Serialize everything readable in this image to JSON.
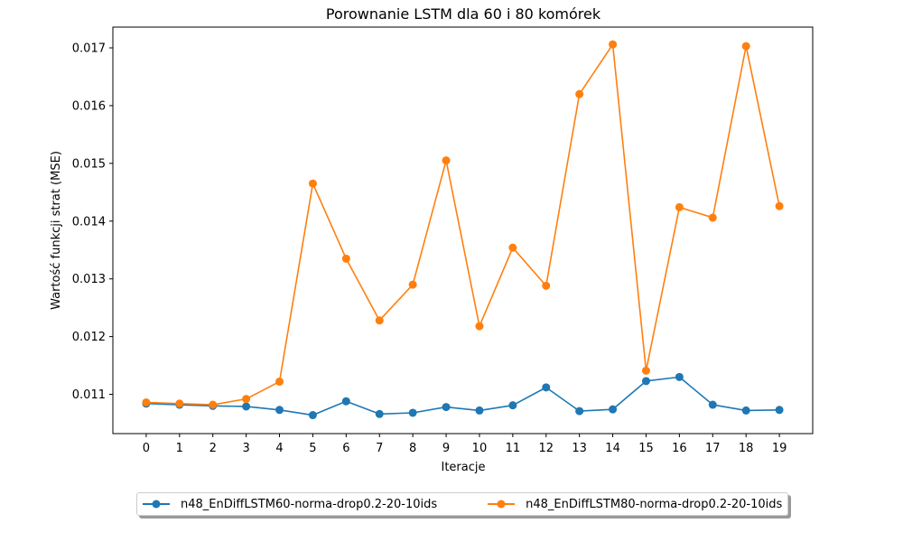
{
  "chart_data": {
    "type": "line",
    "title": "Porownanie LSTM dla 60 i 80 komórek",
    "xlabel": "Iteracje",
    "ylabel": "Wartość funkcji strat (MSE)",
    "x": [
      0,
      1,
      2,
      3,
      4,
      5,
      6,
      7,
      8,
      9,
      10,
      11,
      12,
      13,
      14,
      15,
      16,
      17,
      18,
      19
    ],
    "xlim": [
      -1.0,
      20.0
    ],
    "ylim": [
      0.01032,
      0.01736
    ],
    "yticks": [
      "0.011",
      "0.012",
      "0.013",
      "0.014",
      "0.015",
      "0.016",
      "0.017"
    ],
    "ytick_values": [
      0.011,
      0.012,
      0.013,
      0.014,
      0.015,
      0.016,
      0.017
    ],
    "grid": false,
    "legend_position": "bottom-center",
    "series": [
      {
        "name": "n48_EnDiffLSTM60-norma-drop0.2-20-10ids",
        "color": "#1f77b4",
        "marker": "circle",
        "values": [
          0.01084,
          0.01082,
          0.0108,
          0.01079,
          0.01073,
          0.01064,
          0.01088,
          0.01066,
          0.01068,
          0.01078,
          0.01072,
          0.01081,
          0.01112,
          0.01071,
          0.01074,
          0.01123,
          0.0113,
          0.01082,
          0.01072,
          0.01073
        ]
      },
      {
        "name": "n48_EnDiffLSTM80-norma-drop0.2-20-10ids",
        "color": "#ff7f0e",
        "marker": "circle",
        "values": [
          0.01086,
          0.01084,
          0.01082,
          0.01092,
          0.01122,
          0.01465,
          0.01335,
          0.01228,
          0.0129,
          0.01505,
          0.01218,
          0.01354,
          0.01288,
          0.0162,
          0.01706,
          0.01141,
          0.01424,
          0.01406,
          0.01703,
          0.01426
        ]
      }
    ]
  }
}
